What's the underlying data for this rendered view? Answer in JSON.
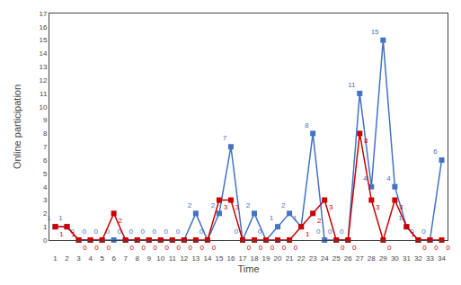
{
  "chart_data": {
    "type": "line",
    "xlabel": "Time",
    "ylabel": "Online participation",
    "x": [
      1,
      2,
      3,
      4,
      5,
      6,
      7,
      8,
      9,
      10,
      11,
      12,
      13,
      14,
      15,
      16,
      17,
      18,
      19,
      20,
      21,
      22,
      23,
      24,
      25,
      26,
      27,
      28,
      29,
      30,
      31,
      32,
      33,
      34
    ],
    "series": [
      {
        "color": "#4472C4",
        "values": [
          1,
          1,
          0,
          0,
          0,
          0,
          0,
          0,
          0,
          0,
          0,
          0,
          2,
          0,
          2,
          7,
          0,
          2,
          0,
          1,
          2,
          1,
          8,
          0,
          0,
          0,
          11,
          4,
          15,
          4,
          1,
          0,
          0,
          6
        ]
      },
      {
        "color": "#CC0000",
        "values": [
          1,
          1,
          0,
          0,
          0,
          2,
          0,
          0,
          0,
          0,
          0,
          0,
          0,
          0,
          3,
          3,
          0,
          0,
          0,
          0,
          0,
          1,
          2,
          3,
          0,
          0,
          8,
          3,
          0,
          3,
          1,
          0,
          0,
          0
        ]
      }
    ],
    "xlim": [
      0.5,
      34.5
    ],
    "ylim": [
      0,
      17
    ],
    "xticks": [
      1,
      2,
      3,
      4,
      5,
      6,
      7,
      8,
      9,
      10,
      11,
      12,
      13,
      14,
      15,
      16,
      17,
      18,
      19,
      20,
      21,
      22,
      23,
      24,
      25,
      26,
      27,
      28,
      29,
      30,
      31,
      32,
      33,
      34
    ],
    "yticks": [
      0,
      1,
      2,
      3,
      4,
      5,
      6,
      7,
      8,
      9,
      10,
      11,
      12,
      13,
      14,
      15,
      16,
      17
    ],
    "grid": false,
    "data_labels": true,
    "marker": "square"
  }
}
